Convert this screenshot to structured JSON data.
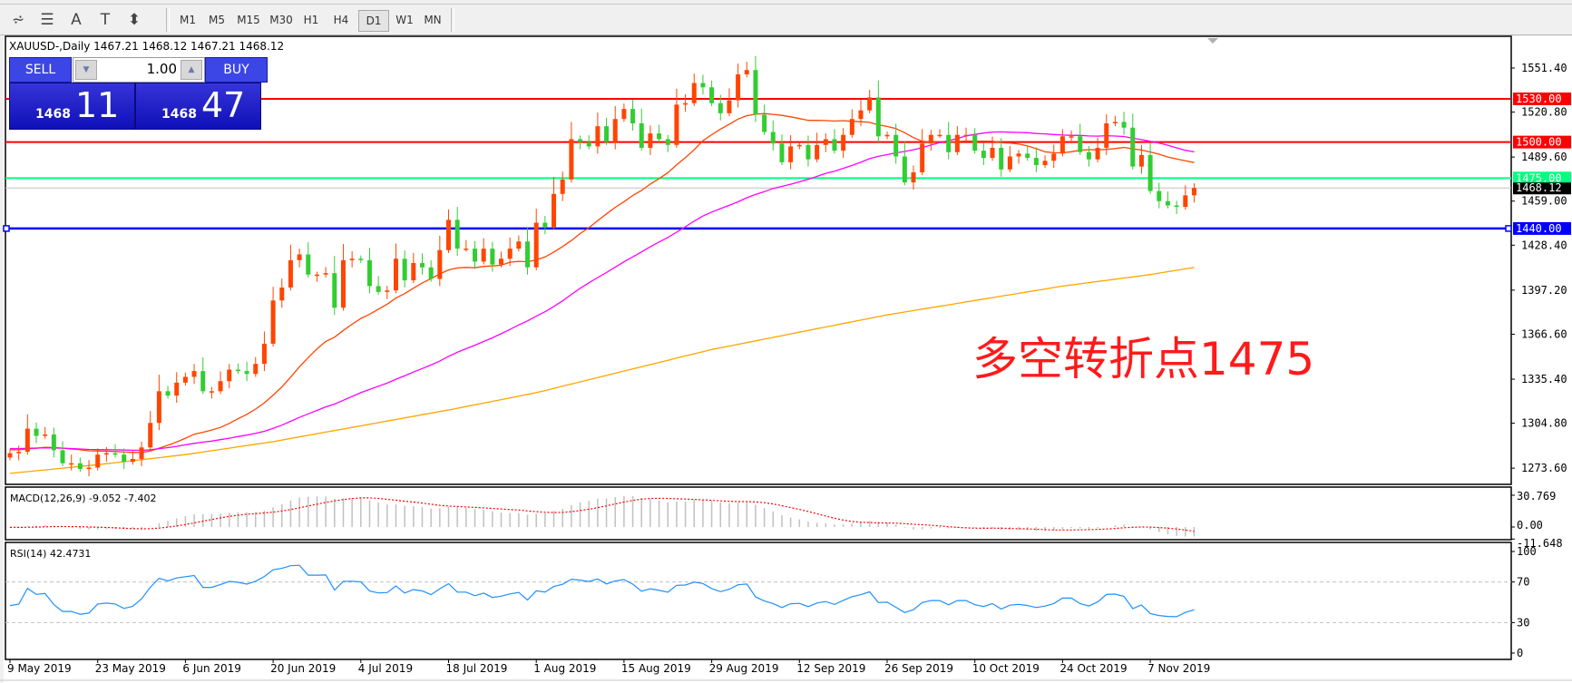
{
  "toolbar": {
    "icons": [
      "elliott-wave-icon",
      "fibonacci-icon",
      "text-icon",
      "text-label-icon",
      "arrows-icon"
    ],
    "icon_glyphs": [
      "⩫",
      "☰",
      "A",
      "T",
      "⬍"
    ],
    "timeframes": [
      "M1",
      "M5",
      "M15",
      "M30",
      "H1",
      "H4",
      "D1",
      "W1",
      "MN"
    ],
    "active_timeframe": "D1"
  },
  "chart": {
    "title": "XAUUSD-,Daily  1467.21 1468.12 1467.21 1468.12",
    "annotation": "多空转折点1475",
    "macd_label": "MACD(12,26,9) -9.052 -7.402",
    "rsi_label": "RSI(14) 42.4731"
  },
  "trade_panel": {
    "sell_label": "SELL",
    "buy_label": "BUY",
    "lot": "1.00",
    "sell_small": "1468",
    "sell_big": "11",
    "buy_small": "1468",
    "buy_big": "47"
  },
  "chart_data": {
    "type": "candlestick",
    "symbol": "XAUUSD-",
    "period": "Daily",
    "start_date": "2019-05-09",
    "first_open": 1281,
    "close": [
      1284,
      1285,
      1301,
      1296,
      1297,
      1286,
      1277,
      1277,
      1273,
      1274,
      1283,
      1284,
      1283,
      1278,
      1280,
      1288,
      1305,
      1327,
      1324,
      1333,
      1337,
      1341,
      1327,
      1327,
      1334,
      1342,
      1341,
      1339,
      1346,
      1360,
      1390,
      1399,
      1418,
      1422,
      1408,
      1408,
      1409,
      1385,
      1418,
      1419,
      1418,
      1400,
      1396,
      1397,
      1419,
      1404,
      1416,
      1413,
      1405,
      1425,
      1446,
      1426,
      1426,
      1417,
      1426,
      1415,
      1419,
      1426,
      1431,
      1413,
      1444,
      1441,
      1464,
      1474,
      1502,
      1500,
      1497,
      1511,
      1500,
      1516,
      1523,
      1513,
      1496,
      1506,
      1502,
      1498,
      1526,
      1527,
      1541,
      1538,
      1527,
      1520,
      1529,
      1547,
      1550,
      1519,
      1507,
      1499,
      1486,
      1497,
      1498,
      1488,
      1498,
      1502,
      1494,
      1505,
      1516,
      1522,
      1531,
      1504,
      1505,
      1490,
      1472,
      1479,
      1499,
      1505,
      1505,
      1493,
      1505,
      1505,
      1494,
      1489,
      1496,
      1481,
      1490,
      1492,
      1489,
      1484,
      1487,
      1492,
      1504,
      1504,
      1493,
      1488,
      1496,
      1513,
      1514,
      1510,
      1483,
      1491,
      1466,
      1459,
      1456,
      1455,
      1463,
      1468.12
    ],
    "bull_color": "#ff4500",
    "bear_color": "#32cd32",
    "moving_averages": [
      {
        "period": 20,
        "color": "#ff4500"
      },
      {
        "period": 50,
        "color": "#ff00ff"
      },
      {
        "period": 200,
        "color": "#ffa500"
      }
    ],
    "ma200_at_dates": {
      "9 May 2019": 1270,
      "23 May 2019": 1276,
      "6 Jun 2019": 1283,
      "20 Jun 2019": 1292,
      "4 Jul 2019": 1303,
      "18 Jul 2019": 1314,
      "1 Aug 2019": 1326,
      "15 Aug 2019": 1341,
      "29 Aug 2019": 1356,
      "12 Sep 2019": 1368,
      "26 Sep 2019": 1380,
      "10 Oct 2019": 1390,
      "24 Oct 2019": 1400,
      "7 Nov 2019": 1408,
      "14 Nov 2019": 1413
    },
    "horizontal_lines": [
      {
        "price": 1530.0,
        "label": "1530.00",
        "color": "#ff0000"
      },
      {
        "price": 1500.0,
        "label": "1500.00",
        "color": "#ff0000"
      },
      {
        "price": 1475.0,
        "label": "1475.00",
        "color": "#00ff7f"
      },
      {
        "price": 1440.0,
        "label": "1440.00",
        "color": "#0000ff"
      }
    ],
    "current_price": {
      "price": 1468.12,
      "label": "1468.12"
    },
    "price_ticks": [
      "1551.40",
      "1520.80",
      "1489.60",
      "1459.00",
      "1428.40",
      "1397.20",
      "1366.60",
      "1335.40",
      "1304.80",
      "1273.60"
    ],
    "price_range": [
      1262,
      1566
    ],
    "macd": {
      "fast": 12,
      "slow": 26,
      "signal": 9,
      "ticks": [
        "30.769",
        "0.00",
        "-11.648"
      ],
      "range": [
        -11.648,
        30.769
      ],
      "hist_color": "#c0c0c0",
      "signal_color": "#ff0000"
    },
    "rsi": {
      "period": 14,
      "ticks": [
        "100",
        "70",
        "30",
        "0"
      ],
      "levels": [
        70,
        30
      ],
      "color": "#1e90ff"
    },
    "date_labels": [
      "9 May 2019",
      "23 May 2019",
      "6 Jun 2019",
      "20 Jun 2019",
      "4 Jul 2019",
      "18 Jul 2019",
      "1 Aug 2019",
      "15 Aug 2019",
      "29 Aug 2019",
      "12 Sep 2019",
      "26 Sep 2019",
      "10 Oct 2019",
      "24 Oct 2019",
      "7 Nov 2019"
    ]
  }
}
